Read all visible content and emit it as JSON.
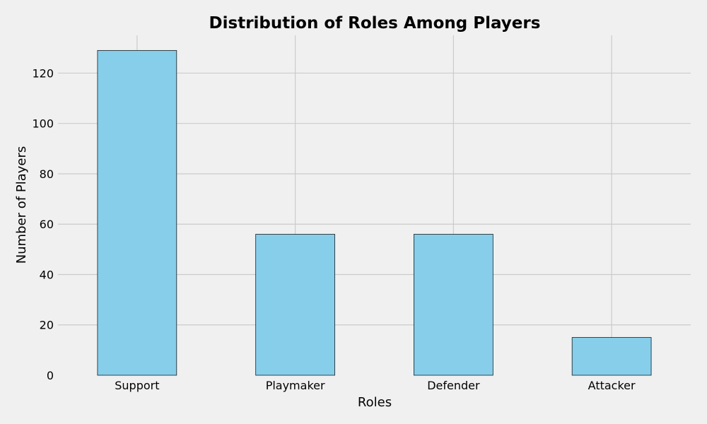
{
  "chart_data": {
    "type": "bar",
    "title": "Distribution of Roles Among Players",
    "xlabel": "Roles",
    "ylabel": "Number of Players",
    "categories": [
      "Support",
      "Playmaker",
      "Defender",
      "Attacker"
    ],
    "values": [
      129,
      56,
      56,
      15
    ],
    "ylim": [
      0,
      135
    ],
    "yticks": [
      0,
      20,
      40,
      60,
      80,
      100,
      120
    ],
    "grid": true,
    "bar_color": "#87ceeb",
    "edge_color": "#1a1a1a",
    "background_color": "#f0f0f0",
    "grid_color": "#cbcbcb"
  }
}
